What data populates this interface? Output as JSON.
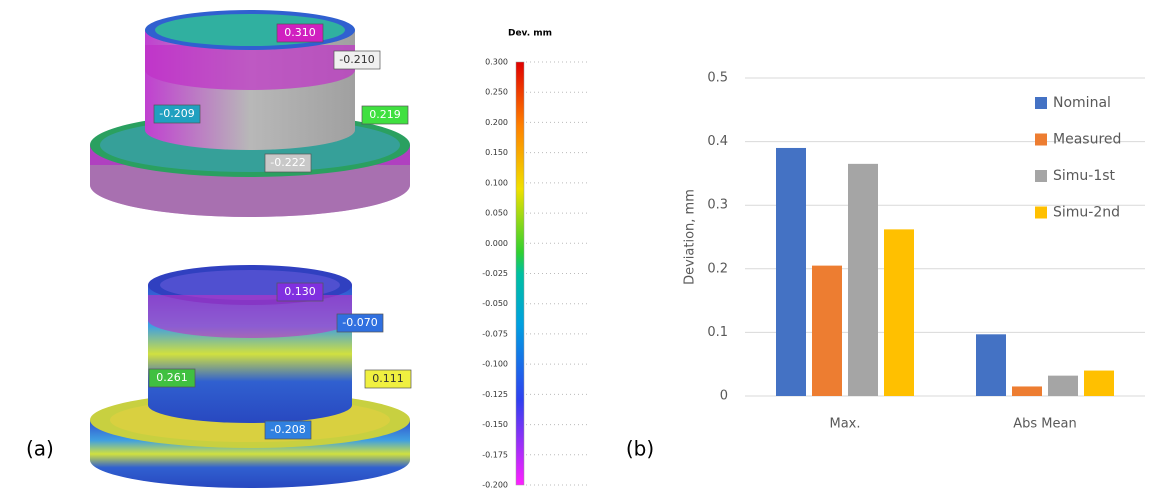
{
  "panel_a": {
    "label": "(a)",
    "top_model_labels": [
      "0.310",
      "-0.210",
      "-0.209",
      "0.219",
      "-0.222"
    ],
    "bottom_model_labels": [
      "0.130",
      "-0.070",
      "0.261",
      "0.111",
      "-0.208"
    ],
    "colorbar": {
      "title": "Dev. mm",
      "ticks": [
        "0.300",
        "0.250",
        "0.200",
        "0.150",
        "0.100",
        "0.050",
        "0.000",
        "-0.025",
        "-0.050",
        "-0.075",
        "-0.100",
        "-0.125",
        "-0.150",
        "-0.175",
        "-0.200"
      ]
    }
  },
  "panel_b": {
    "label": "(b)"
  },
  "chart_data": {
    "type": "bar",
    "ylabel": "Deviation, mm",
    "categories": [
      "Max.",
      "Abs Mean"
    ],
    "series": [
      {
        "name": "Nominal",
        "color": "#4472c4",
        "values": [
          0.39,
          0.097
        ]
      },
      {
        "name": "Measured",
        "color": "#ed7d31",
        "values": [
          0.205,
          0.015
        ]
      },
      {
        "name": "Simu-1st",
        "color": "#a5a5a5",
        "values": [
          0.365,
          0.032
        ]
      },
      {
        "name": "Simu-2nd",
        "color": "#ffc000",
        "values": [
          0.262,
          0.04
        ]
      }
    ],
    "ylim": [
      0,
      0.5
    ],
    "yticks": [
      0,
      0.1,
      0.2,
      0.3,
      0.4,
      0.5
    ],
    "grid": true,
    "legend": "right"
  }
}
